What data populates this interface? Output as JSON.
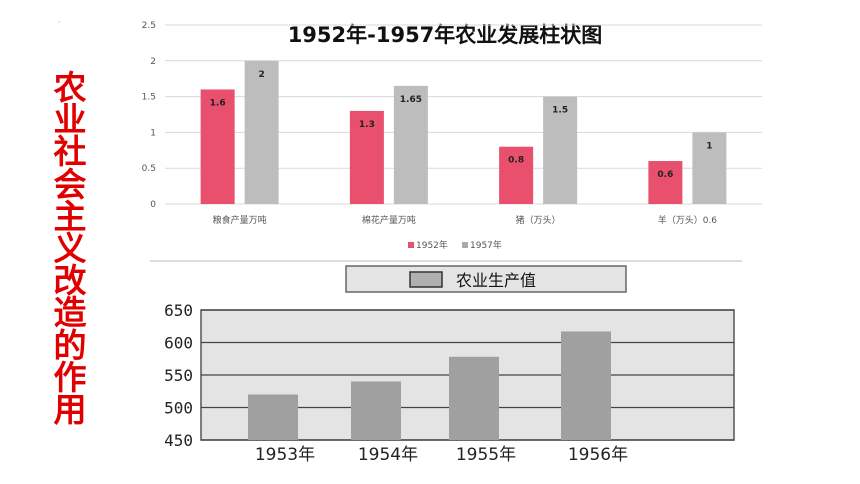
{
  "side_title": "农业社会主义改造的作用",
  "side_title_chars": [
    "农",
    "业",
    "社",
    "会",
    "主",
    "义",
    "改",
    "造",
    "的",
    "作",
    "用"
  ],
  "chart_data": [
    {
      "type": "bar",
      "title": "1952年-1957年农业发展柱状图",
      "categories": [
        "粮食产量万吨",
        "棉花产量万吨",
        "猪（万头）",
        "羊（万头）0.6"
      ],
      "series": [
        {
          "name": "1952年",
          "values": [
            1.6,
            1.3,
            0.8,
            0.6
          ],
          "labels": [
            "1.6",
            "1.3",
            "0.8",
            "0.6"
          ],
          "color": "#e8506e"
        },
        {
          "name": "1957年",
          "values": [
            2,
            1.65,
            1.5,
            1
          ],
          "labels": [
            "2",
            "1.65",
            "1.5",
            "1"
          ],
          "color": "#bdbdbd"
        }
      ],
      "y_ticks": [
        "0",
        "0.5",
        "1",
        "1.5",
        "2",
        "2.5"
      ],
      "ylim": [
        0,
        2.5
      ],
      "grid": true,
      "legend_position": "bottom"
    },
    {
      "type": "bar",
      "title": "农业生产值",
      "categories": [
        "1953年",
        "1954年",
        "1955年",
        "1956年"
      ],
      "values": [
        520,
        540,
        578,
        617
      ],
      "y_ticks": [
        "450",
        "500",
        "550",
        "600",
        "650"
      ],
      "ylim": [
        450,
        650
      ],
      "color": "#a0a0a0",
      "grid": true
    }
  ]
}
